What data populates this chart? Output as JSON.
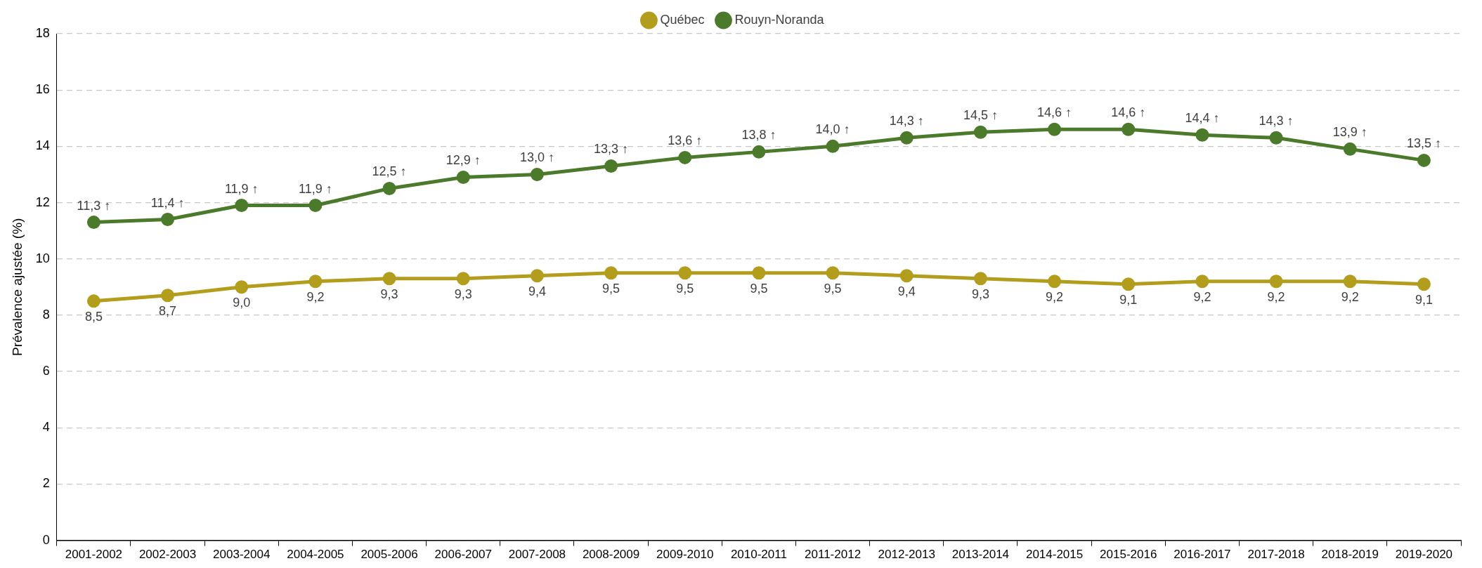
{
  "chart_data": {
    "type": "line",
    "ylabel": "Prévalence ajustée (%)",
    "categories": [
      "2001-2002",
      "2002-2003",
      "2003-2004",
      "2004-2005",
      "2005-2006",
      "2006-2007",
      "2007-2008",
      "2008-2009",
      "2009-2010",
      "2010-2011",
      "2011-2012",
      "2012-2013",
      "2013-2014",
      "2014-2015",
      "2015-2016",
      "2016-2017",
      "2017-2018",
      "2018-2019",
      "2019-2020"
    ],
    "series": [
      {
        "name": "Québec",
        "color": "#b39d1c",
        "values": [
          8.5,
          8.7,
          9.0,
          9.2,
          9.3,
          9.3,
          9.4,
          9.5,
          9.5,
          9.5,
          9.5,
          9.4,
          9.3,
          9.2,
          9.1,
          9.2,
          9.2,
          9.2,
          9.1
        ],
        "value_labels": [
          "8,5",
          "8,7",
          "9,0",
          "9,2",
          "9,3",
          "9,3",
          "9,4",
          "9,5",
          "9,5",
          "9,5",
          "9,5",
          "9,4",
          "9,3",
          "9,2",
          "9,1",
          "9,2",
          "9,2",
          "9,2",
          "9,1"
        ]
      },
      {
        "name": "Rouyn-Noranda",
        "color": "#4a7a2a",
        "values": [
          11.3,
          11.4,
          11.9,
          11.9,
          12.5,
          12.9,
          13.0,
          13.3,
          13.6,
          13.8,
          14.0,
          14.3,
          14.5,
          14.6,
          14.6,
          14.4,
          14.3,
          13.9,
          13.5
        ],
        "value_labels": [
          "11,3 ↑",
          "11,4 ↑",
          "11,9 ↑",
          "11,9 ↑",
          "12,5 ↑",
          "12,9 ↑",
          "13,0 ↑",
          "13,3 ↑",
          "13,6 ↑",
          "13,8 ↑",
          "14,0 ↑",
          "14,3 ↑",
          "14,5 ↑",
          "14,6 ↑",
          "14,6 ↑",
          "14,4 ↑",
          "14,3 ↑",
          "13,9 ↑",
          "13,5 ↑"
        ]
      }
    ],
    "ylim": [
      0,
      18
    ],
    "yticks": [
      0,
      2,
      4,
      6,
      8,
      10,
      12,
      14,
      16,
      18
    ],
    "grid": "y",
    "legend": "top",
    "marker": "circle",
    "line_style": "solid"
  }
}
